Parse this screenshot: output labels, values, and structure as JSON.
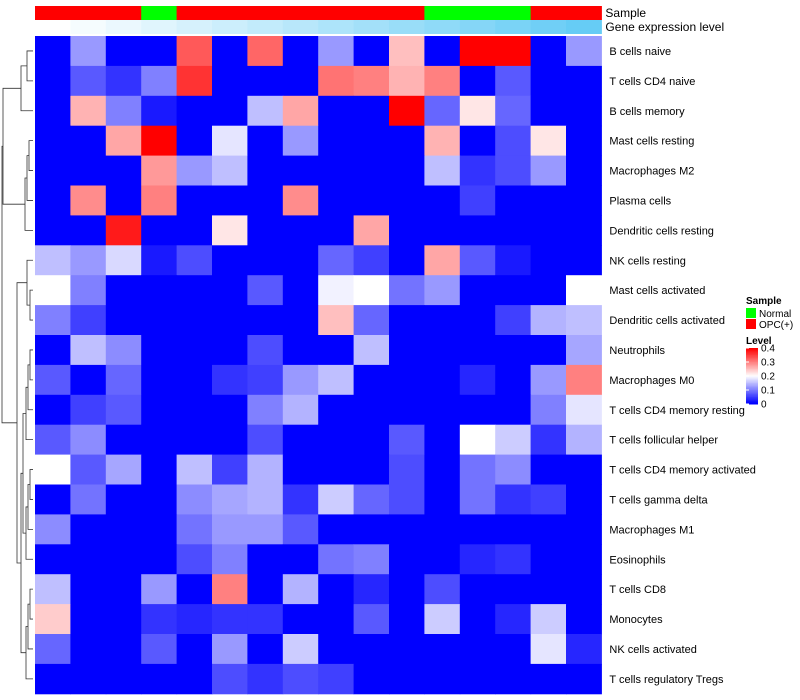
{
  "chart_data": {
    "type": "heatmap",
    "annotation_tracks": [
      {
        "name": "Sample",
        "values": [
          "OPC(+)",
          "OPC(+)",
          "OPC(+)",
          "Normal",
          "OPC(+)",
          "OPC(+)",
          "OPC(+)",
          "OPC(+)",
          "OPC(+)",
          "OPC(+)",
          "OPC(+)",
          "Normal",
          "Normal",
          "Normal",
          "OPC(+)",
          "OPC(+)"
        ]
      },
      {
        "name": "Gene expression level",
        "values": [
          1,
          2,
          3,
          4,
          5,
          6,
          7,
          8,
          9,
          10,
          11,
          12,
          13,
          14,
          15,
          16
        ]
      }
    ],
    "rows": [
      "B cells naive",
      "T cells CD4 naive",
      "B cells memory",
      "Mast cells resting",
      "Macrophages M2",
      "Plasma cells",
      "Dendritic cells resting",
      "NK cells resting",
      "Mast cells activated",
      "Dendritic cells activated",
      "Neutrophils",
      "Macrophages M0",
      "T cells CD4 memory resting",
      "T cells follicular helper",
      "T cells CD4 memory activated",
      "T cells gamma delta",
      "Macrophages M1",
      "Eosinophils",
      "T cells CD8",
      "Monocytes",
      "NK cells activated",
      "T cells regulatory  Tregs"
    ],
    "values": [
      [
        0,
        0.12,
        0,
        0,
        0.33,
        0,
        0.32,
        0,
        0.12,
        0,
        0.25,
        0,
        0.4,
        0.4,
        0,
        0.12
      ],
      [
        0,
        0.07,
        0.04,
        0.1,
        0.36,
        0,
        0,
        0,
        0.31,
        0.3,
        0.26,
        0.3,
        0,
        0.07,
        0,
        0
      ],
      [
        0,
        0.26,
        0.1,
        0.02,
        0,
        0,
        0.15,
        0.27,
        0,
        0,
        0.4,
        0.08,
        0.22,
        0.08,
        0,
        0
      ],
      [
        0,
        0,
        0.27,
        0.4,
        0,
        0.18,
        0,
        0.12,
        0,
        0,
        0,
        0.26,
        0,
        0.06,
        0.22,
        0
      ],
      [
        0,
        0,
        0,
        0.28,
        0.12,
        0.15,
        0,
        0,
        0,
        0,
        0,
        0.15,
        0.04,
        0.06,
        0.12,
        0
      ],
      [
        0,
        0.29,
        0,
        0.3,
        0,
        0,
        0,
        0.29,
        0,
        0,
        0,
        0,
        0.05,
        0,
        0,
        0
      ],
      [
        0,
        0,
        0.38,
        0,
        0,
        0.22,
        0,
        0,
        0,
        0.27,
        0,
        0,
        0,
        0,
        0,
        0
      ],
      [
        0.15,
        0.12,
        0.17,
        0.02,
        0.06,
        0,
        0,
        0,
        0.08,
        0.05,
        0,
        0.27,
        0.07,
        0.02,
        0,
        0
      ],
      [
        0.2,
        0.1,
        0,
        0,
        0,
        0,
        0.07,
        0,
        0.19,
        0.2,
        0.09,
        0.12,
        0,
        0,
        0,
        0.2
      ],
      [
        0.1,
        0.05,
        0,
        0,
        0,
        0,
        0,
        0,
        0.25,
        0.08,
        0,
        0,
        0,
        0.05,
        0.14,
        0.15
      ],
      [
        0,
        0.15,
        0.11,
        0,
        0,
        0,
        0.06,
        0,
        0,
        0.15,
        0,
        0,
        0,
        0,
        0,
        0.13
      ],
      [
        0.07,
        0,
        0.08,
        0,
        0,
        0.04,
        0.05,
        0.12,
        0.15,
        0,
        0,
        0,
        0.03,
        0,
        0.12,
        0.3
      ],
      [
        0,
        0.05,
        0.07,
        0,
        0,
        0,
        0.1,
        0.14,
        0,
        0,
        0,
        0,
        0,
        0,
        0.1,
        0.18
      ],
      [
        0.07,
        0.11,
        0,
        0,
        0,
        0,
        0.06,
        0,
        0,
        0,
        0.07,
        0,
        0.2,
        0.16,
        0.04,
        0.14
      ],
      [
        0.2,
        0.07,
        0.13,
        0,
        0.15,
        0.05,
        0.14,
        0,
        0,
        0,
        0.06,
        0,
        0.09,
        0.11,
        0,
        0
      ],
      [
        0,
        0.09,
        0,
        0,
        0.11,
        0.13,
        0.14,
        0.04,
        0.16,
        0.08,
        0.06,
        0,
        0.09,
        0.04,
        0.05,
        0
      ],
      [
        0.11,
        0,
        0,
        0,
        0.09,
        0.12,
        0.12,
        0.07,
        0,
        0,
        0,
        0,
        0,
        0,
        0,
        0
      ],
      [
        0,
        0,
        0,
        0,
        0.06,
        0.1,
        0,
        0,
        0.09,
        0.1,
        0,
        0,
        0.03,
        0.04,
        0,
        0
      ],
      [
        0.15,
        0,
        0,
        0.12,
        0,
        0.3,
        0,
        0.14,
        0,
        0.03,
        0,
        0.06,
        0,
        0,
        0,
        0
      ],
      [
        0.24,
        0,
        0,
        0.04,
        0.03,
        0.04,
        0.04,
        0,
        0,
        0.07,
        0,
        0.16,
        0,
        0.03,
        0.16,
        0
      ],
      [
        0.08,
        0,
        0,
        0.07,
        0,
        0.12,
        0,
        0.16,
        0,
        0,
        0,
        0,
        0,
        0,
        0.18,
        0.03
      ],
      [
        0,
        0,
        0,
        0,
        0,
        0.06,
        0.04,
        0.06,
        0.05,
        0,
        0,
        0,
        0,
        0,
        0,
        0
      ]
    ],
    "color_scale": {
      "low": "#0000ff",
      "mid": "#ffffff",
      "high": "#ff0000",
      "min": 0,
      "mid_value": 0.2,
      "max": 0.4
    },
    "legend": {
      "sample_title": "Sample",
      "sample_items": [
        {
          "label": "Normal",
          "color": "#00ff00"
        },
        {
          "label": "OPC(+)",
          "color": "#ff0000"
        }
      ],
      "level_title": "Level",
      "level_ticks": [
        "0.4",
        "0.3",
        "0.2",
        "0.1",
        "0"
      ],
      "placement": "right"
    },
    "annotation_colors": {
      "Normal": "#00ff00",
      "OPC(+)": "#ff0000",
      "expr_low": "#ffffff",
      "expr_high": "#66ccf5"
    },
    "dendrogram": "row-clustering",
    "grid": false
  }
}
